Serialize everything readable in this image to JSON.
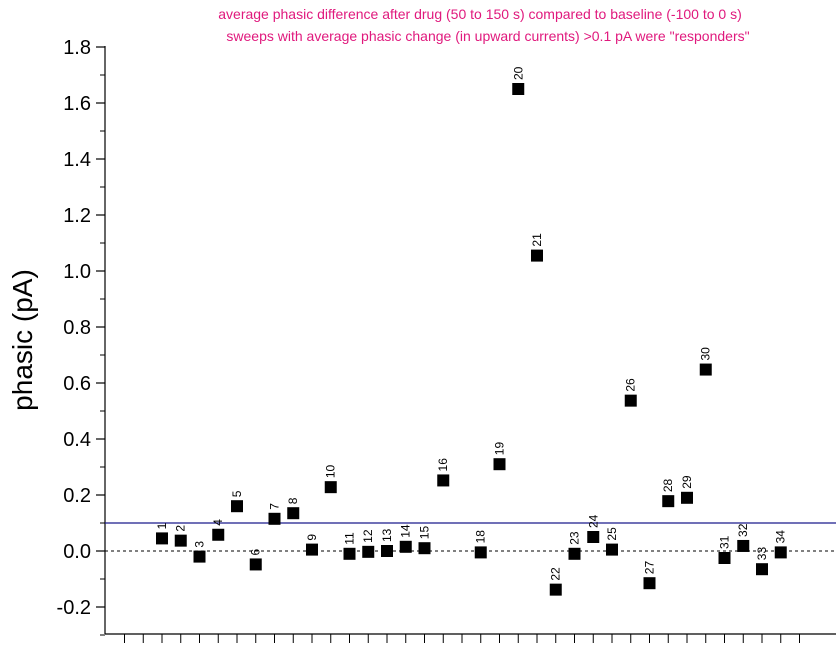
{
  "chart_data": {
    "type": "scatter",
    "title_lines": [
      "average phasic difference after drug (50 to 150 s) compared to baseline (-100 to 0 s)",
      "sweeps with average phasic change (in upward currents) >0.1 pA were \"responders\""
    ],
    "ylabel": "phasic (pA)",
    "xlabel": "",
    "ylim": [
      -0.3,
      1.8
    ],
    "y_ticks": [
      "-0.2",
      "0.0",
      "0.2",
      "0.4",
      "0.6",
      "0.8",
      "1.0",
      "1.2",
      "1.4",
      "1.6",
      "1.8"
    ],
    "y_tick_values": [
      -0.2,
      0.0,
      0.2,
      0.4,
      0.6,
      0.8,
      1.0,
      1.2,
      1.4,
      1.6,
      1.8
    ],
    "xlim": [
      -1,
      35
    ],
    "threshold": 0.1,
    "zero_line": 0.0,
    "colors": {
      "title": "#e0197d",
      "threshold": "#1a1a8c",
      "marker": "#000000"
    },
    "points": [
      {
        "label": "1",
        "x": 1,
        "y": 0.045
      },
      {
        "label": "2",
        "x": 2,
        "y": 0.037
      },
      {
        "label": "3",
        "x": 3,
        "y": -0.02
      },
      {
        "label": "4",
        "x": 4,
        "y": 0.058
      },
      {
        "label": "5",
        "x": 5,
        "y": 0.16
      },
      {
        "label": "6",
        "x": 6,
        "y": -0.048
      },
      {
        "label": "7",
        "x": 7,
        "y": 0.115
      },
      {
        "label": "8",
        "x": 8,
        "y": 0.135
      },
      {
        "label": "9",
        "x": 9,
        "y": 0.005
      },
      {
        "label": "10",
        "x": 10,
        "y": 0.228
      },
      {
        "label": "11",
        "x": 11,
        "y": -0.01
      },
      {
        "label": "12",
        "x": 12,
        "y": -0.003
      },
      {
        "label": "13",
        "x": 13,
        "y": 0.0
      },
      {
        "label": "14",
        "x": 14,
        "y": 0.015
      },
      {
        "label": "15",
        "x": 15,
        "y": 0.01
      },
      {
        "label": "16",
        "x": 16,
        "y": 0.252
      },
      {
        "label": "18",
        "x": 18,
        "y": -0.005
      },
      {
        "label": "19",
        "x": 19,
        "y": 0.31
      },
      {
        "label": "20",
        "x": 20,
        "y": 1.65
      },
      {
        "label": "21",
        "x": 21,
        "y": 1.055
      },
      {
        "label": "22",
        "x": 22,
        "y": -0.138
      },
      {
        "label": "23",
        "x": 23,
        "y": -0.01
      },
      {
        "label": "24",
        "x": 24,
        "y": 0.05
      },
      {
        "label": "25",
        "x": 25,
        "y": 0.005
      },
      {
        "label": "26",
        "x": 26,
        "y": 0.537
      },
      {
        "label": "27",
        "x": 27,
        "y": -0.115
      },
      {
        "label": "28",
        "x": 28,
        "y": 0.178
      },
      {
        "label": "29",
        "x": 29,
        "y": 0.19
      },
      {
        "label": "30",
        "x": 30,
        "y": 0.648
      },
      {
        "label": "31",
        "x": 31,
        "y": -0.025
      },
      {
        "label": "32",
        "x": 32,
        "y": 0.018
      },
      {
        "label": "33",
        "x": 33,
        "y": -0.065
      },
      {
        "label": "34",
        "x": 34,
        "y": -0.005
      }
    ]
  }
}
